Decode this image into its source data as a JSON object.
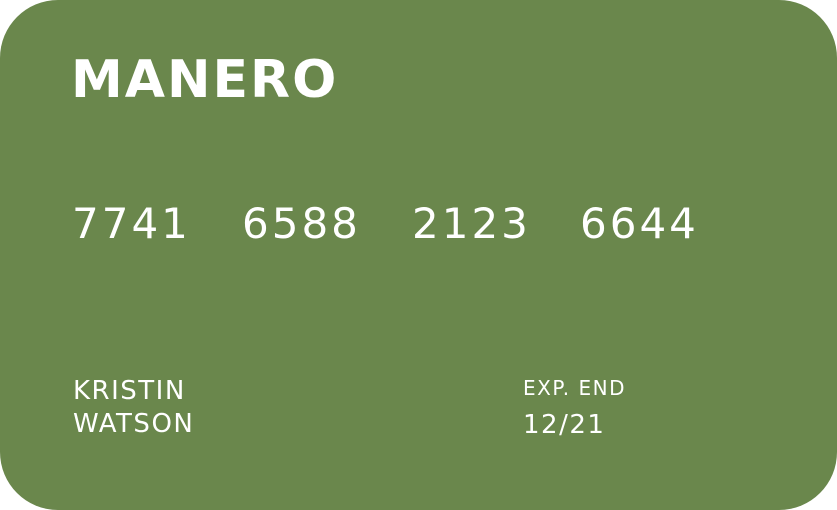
{
  "card": {
    "brand": "MANERO",
    "number_groups": [
      "7741",
      "6588",
      "2123",
      "6644"
    ],
    "holder_first": "KRISTIN",
    "holder_last": "WATSON",
    "exp_label": "EXP. END",
    "exp_value": "12/21",
    "background_color": "#6a874c",
    "text_color": "#ffffff"
  }
}
